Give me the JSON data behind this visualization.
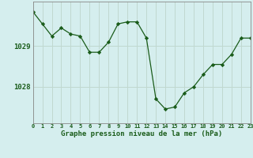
{
  "x": [
    0,
    1,
    2,
    3,
    4,
    5,
    6,
    7,
    8,
    9,
    10,
    11,
    12,
    13,
    14,
    15,
    16,
    17,
    18,
    19,
    20,
    21,
    22,
    23
  ],
  "y": [
    1029.85,
    1029.55,
    1029.25,
    1029.45,
    1029.3,
    1029.25,
    1028.85,
    1028.85,
    1029.1,
    1029.55,
    1029.6,
    1029.6,
    1029.2,
    1027.7,
    1027.45,
    1027.5,
    1027.85,
    1028.0,
    1028.3,
    1028.55,
    1028.55,
    1028.8,
    1029.2,
    1029.2
  ],
  "line_color": "#1a5c1a",
  "marker_color": "#1a5c1a",
  "bg_color": "#d5eeee",
  "grid_color": "#c0d8d0",
  "axis_label_color": "#1a5c1a",
  "border_color": "#888888",
  "yticks": [
    1028,
    1029
  ],
  "xlabel": "Graphe pression niveau de la mer (hPa)",
  "ylim_min": 1027.1,
  "ylim_max": 1030.1,
  "xlim_min": 0,
  "xlim_max": 23
}
